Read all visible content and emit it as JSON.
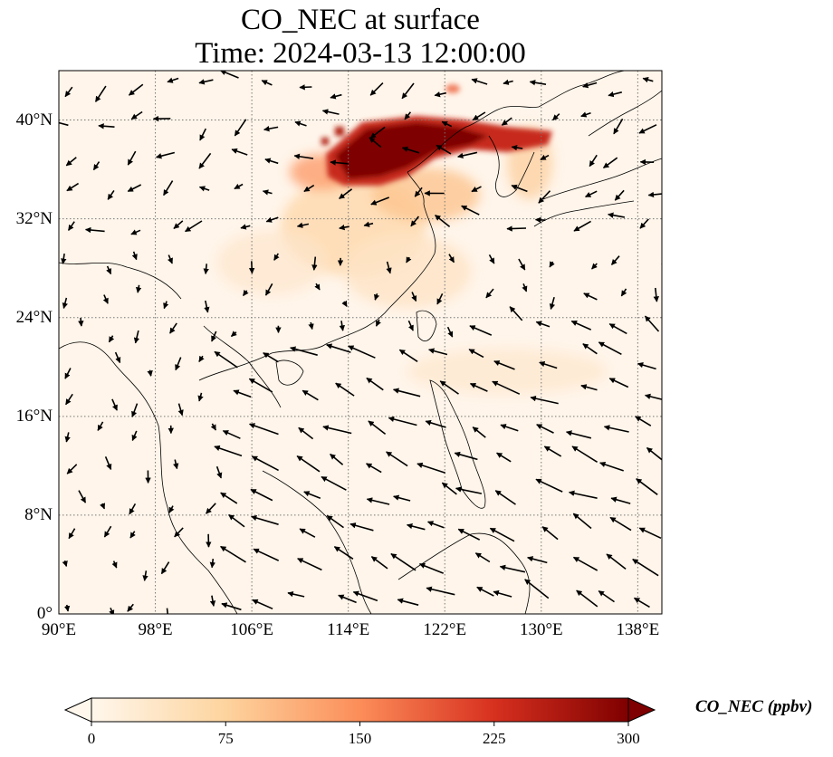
{
  "title": {
    "line1": "CO_NEC at surface",
    "line2": "Time: 2024-03-13 12:00:00"
  },
  "map": {
    "projection": "plate carree",
    "lon_range": [
      90,
      140
    ],
    "lat_range": [
      0,
      44
    ],
    "gridlines": "dotted",
    "x_ticks": [
      {
        "lon": 90,
        "label": "90°E"
      },
      {
        "lon": 98,
        "label": "98°E"
      },
      {
        "lon": 106,
        "label": "106°E"
      },
      {
        "lon": 114,
        "label": "114°E"
      },
      {
        "lon": 122,
        "label": "122°E"
      },
      {
        "lon": 130,
        "label": "130°E"
      },
      {
        "lon": 138,
        "label": "138°E"
      }
    ],
    "y_ticks": [
      {
        "lat": 0,
        "label": "0°"
      },
      {
        "lat": 8,
        "label": "8°N"
      },
      {
        "lat": 16,
        "label": "16°N"
      },
      {
        "lat": 24,
        "label": "24°N"
      },
      {
        "lat": 32,
        "label": "32°N"
      },
      {
        "lat": 40,
        "label": "40°N"
      }
    ],
    "field": {
      "variable": "CO_NEC",
      "colormap": "OrRd",
      "max_concentration_region": "North China Plain / Bohai, ~35-41°N, 112-131°E",
      "moderate_region": "Yangtze basin and East China Sea, ~25-35°N",
      "wind_vectors": "arrows over whole domain; easterly/northeasterly over South China Sea and western Pacific"
    },
    "colors": {
      "low": "#fff7ec",
      "mid": "#fdbb84",
      "high": "#d7301f",
      "max": "#7f0000"
    }
  },
  "colorbar": {
    "label": "CO_NEC (ppbv)",
    "min": 0,
    "max": 300,
    "extend": "both",
    "ticks": [
      {
        "value": 0,
        "label": "0"
      },
      {
        "value": 75,
        "label": "75"
      },
      {
        "value": 150,
        "label": "150"
      },
      {
        "value": 225,
        "label": "225"
      },
      {
        "value": 300,
        "label": "300"
      }
    ]
  }
}
